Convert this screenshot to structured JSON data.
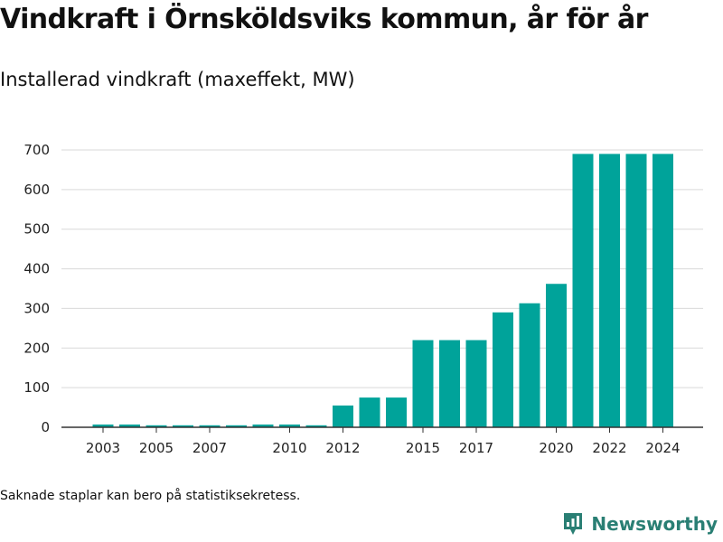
{
  "title": "Vindkraft i Örnsköldsviks kommun, år för år",
  "subtitle": "Installerad vindkraft (maxeffekt, MW)",
  "footnote": "Saknade staplar kan bero på statistiksekretess.",
  "brand": {
    "name": "Newsworthy",
    "color": "#2a7f74"
  },
  "colors": {
    "bar": "#00a39a",
    "grid": "#d9d9d9",
    "axis": "#333333"
  },
  "chart_data": {
    "type": "bar",
    "title": "",
    "xlabel": "",
    "ylabel": "",
    "x_tick_labels": [
      "2003",
      "2005",
      "2007",
      "2010",
      "2012",
      "2015",
      "2017",
      "2020",
      "2022",
      "2024"
    ],
    "categories": [
      2003,
      2004,
      2005,
      2006,
      2007,
      2008,
      2009,
      2010,
      2011,
      2012,
      2013,
      2014,
      2015,
      2016,
      2017,
      2018,
      2019,
      2020,
      2021,
      2022,
      2023,
      2024
    ],
    "values": [
      7,
      7,
      5,
      5,
      5,
      5,
      7,
      7,
      5,
      55,
      75,
      75,
      220,
      220,
      220,
      290,
      313,
      362,
      690,
      690,
      690,
      690
    ],
    "y_ticks": [
      0,
      100,
      200,
      300,
      400,
      500,
      600,
      700
    ],
    "ylim": [
      0,
      720
    ],
    "grid": true,
    "legend": "none"
  }
}
